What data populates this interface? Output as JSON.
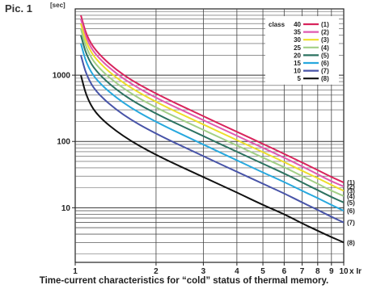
{
  "figure": {
    "label": "Pic. 1",
    "y_unit": "[sec]",
    "caption": "Time-current characteristics for “cold” status of thermal memory."
  },
  "chart_data": {
    "type": "line",
    "x_scale": "log",
    "y_scale": "log",
    "xlim": [
      1,
      10
    ],
    "ylim": [
      1.5,
      10000
    ],
    "x_ticks": [
      1,
      2,
      3,
      4,
      5,
      6,
      7,
      8,
      9,
      10
    ],
    "x_tick_labels": [
      "1",
      "2",
      "3",
      "4",
      "5",
      "6",
      "7",
      "8",
      "9",
      "10"
    ],
    "x_unit_label": "x Ir",
    "y_ticks": [
      10,
      100,
      1000
    ],
    "y_tick_labels": [
      "10",
      "100",
      "1000"
    ],
    "grid": true,
    "legend_title": "class",
    "legend_position": "top-right",
    "x": [
      1.05,
      1.1,
      1.2,
      1.5,
      2,
      3,
      4,
      5,
      6,
      7,
      8,
      9,
      10
    ],
    "series": [
      {
        "name": "40",
        "tag": "(1)",
        "color": "#d8245c",
        "values": [
          8000,
          4000,
          2200,
          1000,
          520,
          240,
          140,
          92,
          65,
          48,
          37,
          29,
          24
        ]
      },
      {
        "name": "35",
        "tag": "(2)",
        "color": "#e05ab0",
        "values": [
          7000,
          3500,
          1900,
          880,
          450,
          210,
          122,
          80,
          57,
          42,
          32,
          25,
          21
        ]
      },
      {
        "name": "30",
        "tag": "(3)",
        "color": "#eede2a",
        "values": [
          6000,
          3000,
          1650,
          760,
          390,
          180,
          105,
          69,
          49,
          36,
          28,
          22,
          18
        ]
      },
      {
        "name": "25",
        "tag": "(4)",
        "color": "#a2cf86",
        "values": [
          5000,
          2500,
          1350,
          630,
          320,
          150,
          87,
          57,
          41,
          30,
          23,
          18,
          15
        ]
      },
      {
        "name": "20",
        "tag": "(5)",
        "color": "#2c7260",
        "values": [
          4000,
          2000,
          1100,
          500,
          260,
          120,
          70,
          46,
          33,
          24,
          18.5,
          14.5,
          12
        ]
      },
      {
        "name": "15",
        "tag": "(6)",
        "color": "#27a8de",
        "values": [
          3000,
          1500,
          820,
          380,
          195,
          90,
          52,
          34,
          24.5,
          18,
          14,
          11,
          9
        ]
      },
      {
        "name": "10",
        "tag": "(7)",
        "color": "#4854a8",
        "values": [
          2000,
          1000,
          540,
          250,
          130,
          60,
          35,
          23,
          16.5,
          12,
          9.3,
          7.3,
          6
        ]
      },
      {
        "name": "5",
        "tag": "(8)",
        "color": "#111111",
        "values": [
          1000,
          480,
          250,
          120,
          62,
          29,
          17,
          11,
          8,
          5.8,
          4.5,
          3.6,
          3
        ]
      }
    ]
  }
}
